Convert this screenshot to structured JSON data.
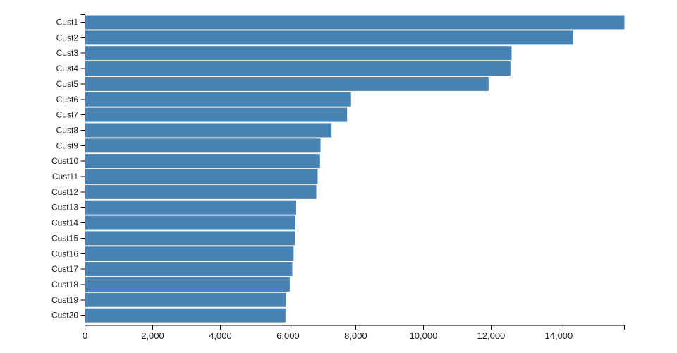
{
  "chart_data": {
    "type": "bar",
    "orientation": "horizontal",
    "title": "",
    "xlabel": "",
    "ylabel": "",
    "categories": [
      "Cust1",
      "Cust2",
      "Cust3",
      "Cust4",
      "Cust5",
      "Cust6",
      "Cust7",
      "Cust8",
      "Cust9",
      "Cust10",
      "Cust11",
      "Cust12",
      "Cust13",
      "Cust14",
      "Cust15",
      "Cust16",
      "Cust17",
      "Cust18",
      "Cust19",
      "Cust20"
    ],
    "values": [
      15940,
      14425,
      12605,
      12570,
      11925,
      7860,
      7745,
      7285,
      6960,
      6945,
      6875,
      6835,
      6240,
      6220,
      6200,
      6165,
      6125,
      6050,
      5945,
      5925
    ],
    "xlim": [
      0,
      15940
    ],
    "x_ticks": [
      0,
      2000,
      4000,
      6000,
      8000,
      10000,
      12000,
      14000
    ],
    "x_tick_labels": [
      "0",
      "2,000",
      "4,000",
      "6,000",
      "8,000",
      "10,000",
      "12,000",
      "14,000"
    ],
    "grid": false,
    "legend": false,
    "colors": {
      "bar": "#4682b4",
      "axis": "#000000",
      "text": "#1a1a1a"
    }
  }
}
